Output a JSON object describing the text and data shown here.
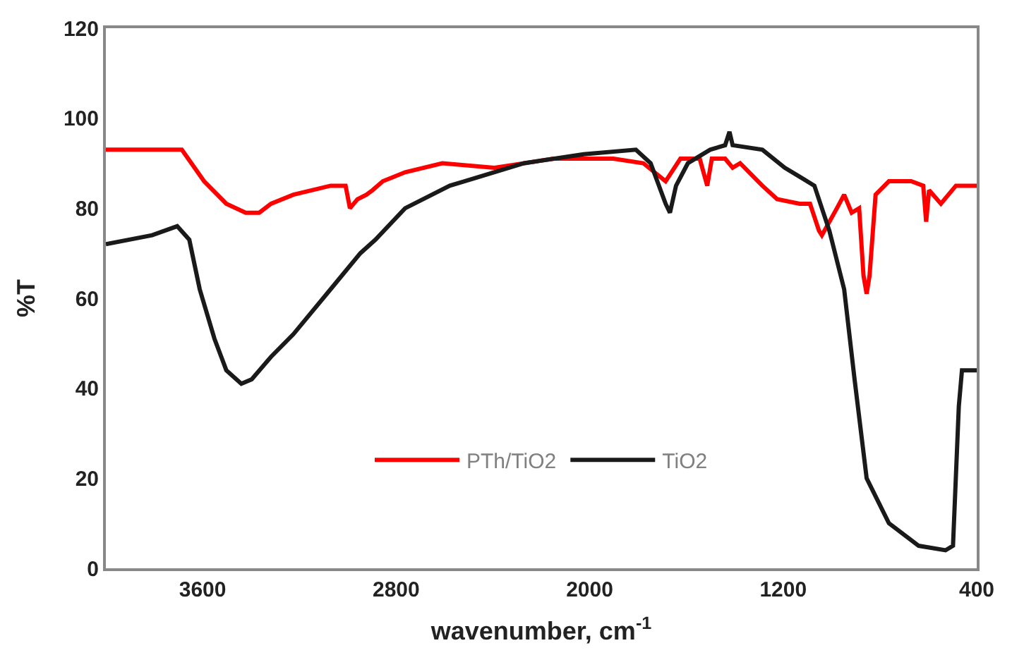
{
  "chart_data": {
    "type": "line",
    "xlabel": "wavenumber, cm$^{-1}$",
    "ylabel": "%T",
    "xlim": [
      4000,
      400
    ],
    "xticks": [
      3600,
      2800,
      2000,
      1200,
      400
    ],
    "ylim": [
      0,
      120
    ],
    "yticks": [
      0,
      20,
      40,
      60,
      80,
      100,
      120
    ],
    "legend": "bottom",
    "marker": "none",
    "line_style": "solid",
    "series": [
      {
        "name": "PTh/TiO2",
        "color": "#ff0000",
        "x": [
          4000,
          3686,
          3594,
          3502,
          3422,
          3366,
          3317,
          3225,
          3071,
          3009,
          2991,
          2960,
          2923,
          2898,
          2855,
          2763,
          2609,
          2394,
          2148,
          1902,
          1778,
          1686,
          1625,
          1545,
          1514,
          1495,
          1440,
          1409,
          1378,
          1286,
          1225,
          1132,
          1089,
          1052,
          1040,
          978,
          948,
          917,
          886,
          868,
          855,
          843,
          818,
          763,
          671,
          621,
          609,
          597,
          548,
          486,
          455,
          400
        ],
        "values": [
          93,
          93,
          86,
          81,
          79,
          79,
          81,
          83,
          85,
          85,
          80,
          82,
          83,
          84,
          86,
          88,
          90,
          89,
          91,
          91,
          90,
          86,
          91,
          91,
          85,
          91,
          91,
          89,
          90,
          85,
          82,
          81,
          81,
          75,
          74,
          80,
          83,
          79,
          80,
          65,
          61,
          65,
          83,
          86,
          86,
          85,
          77,
          84,
          81,
          85,
          85,
          85
        ]
      },
      {
        "name": "TiO2",
        "color": "#1a1a1a",
        "x": [
          4000,
          3809,
          3705,
          3655,
          3612,
          3551,
          3502,
          3440,
          3397,
          3317,
          3225,
          3071,
          2948,
          2886,
          2763,
          2578,
          2271,
          2025,
          1809,
          1748,
          1686,
          1668,
          1643,
          1594,
          1502,
          1440,
          1422,
          1409,
          1286,
          1194,
          1132,
          1071,
          1009,
          948,
          905,
          855,
          763,
          640,
          529,
          498,
          474,
          461,
          400
        ],
        "values": [
          72,
          74,
          76,
          73,
          62,
          51,
          44,
          41,
          42,
          47,
          52,
          62,
          70,
          73,
          80,
          85,
          90,
          92,
          93,
          90,
          81,
          79,
          85,
          90,
          93,
          94,
          97,
          94,
          93,
          89,
          87,
          85,
          75,
          62,
          42,
          20,
          10,
          5,
          4,
          5,
          36,
          44,
          44
        ]
      }
    ]
  }
}
